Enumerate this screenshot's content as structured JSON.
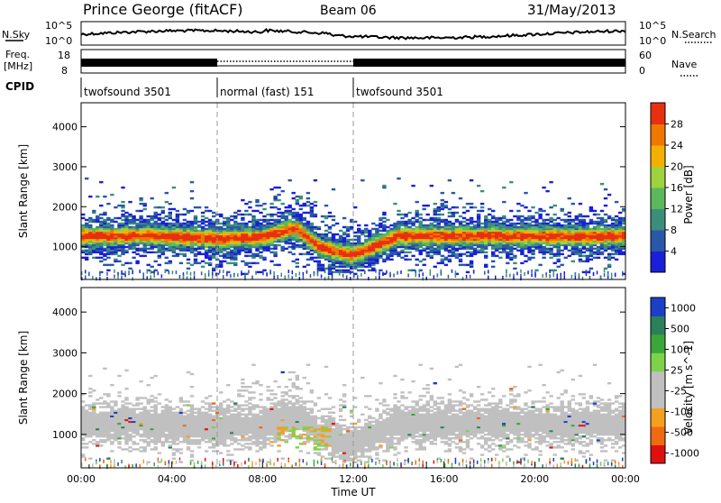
{
  "header": {
    "station": "Prince George (fitACF)",
    "beam": "Beam 06",
    "date": "31/May/2013"
  },
  "top_panels": {
    "nsky": {
      "label": "N.Sky",
      "tick_top": "10^5",
      "tick_bottom": "10^0",
      "right_tick_top": "10^5",
      "right_tick_bottom": "10^0",
      "right_label": "N.Search"
    },
    "freq": {
      "label_line1": "Freq.",
      "label_line2": "[MHz]",
      "tick_top": "18",
      "tick_bottom": "8",
      "right_tick_top": "60",
      "right_tick_bottom": "0",
      "right_label": "Nave"
    },
    "cpid": {
      "label": "CPID",
      "segments": [
        {
          "name": "twofsound 3501",
          "start_h": 0,
          "end_h": 6
        },
        {
          "name": "normal (fast) 151",
          "start_h": 6,
          "end_h": 12
        },
        {
          "name": "twofsound 3501",
          "start_h": 12,
          "end_h": 24
        }
      ]
    }
  },
  "chart_data": [
    {
      "type": "heatmap",
      "title": "",
      "ylabel": "Slant Range [km]",
      "xlabel": "",
      "yticks": [
        1000,
        2000,
        3000,
        4000
      ],
      "ylim": [
        180,
        4600
      ],
      "xlim_hours": [
        0,
        24
      ],
      "dashed_x_hours": [
        6,
        12
      ],
      "colorbar": {
        "label": "Power [dB]",
        "ticks": [
          "4",
          "8",
          "12",
          "16",
          "20",
          "24",
          "28"
        ],
        "range": [
          0,
          30
        ],
        "colors": [
          "#1a1fd8",
          "#2a57a8",
          "#3b8f7a",
          "#5cb85c",
          "#9fd23f",
          "#f4b000",
          "#f07800",
          "#e83010"
        ]
      },
      "band_centers_km": [
        {
          "h": 0,
          "km": 1250
        },
        {
          "h": 3,
          "km": 1260
        },
        {
          "h": 6,
          "km": 1180
        },
        {
          "h": 8,
          "km": 1220
        },
        {
          "h": 9.5,
          "km": 1450
        },
        {
          "h": 10.5,
          "km": 980
        },
        {
          "h": 12,
          "km": 760
        },
        {
          "h": 14,
          "km": 1250
        },
        {
          "h": 18,
          "km": 1250
        },
        {
          "h": 22,
          "km": 1230
        },
        {
          "h": 24,
          "km": 1250
        }
      ]
    },
    {
      "type": "heatmap",
      "title": "",
      "ylabel": "Slant Range [km]",
      "xlabel": "Time UT",
      "yticks": [
        1000,
        2000,
        3000,
        4000
      ],
      "ylim": [
        180,
        4600
      ],
      "xlim_hours": [
        0,
        24
      ],
      "xticks": [
        "00:00",
        "04:00",
        "08:00",
        "12:00",
        "16:00",
        "20:00",
        "00:00"
      ],
      "dashed_x_hours": [
        6,
        12
      ],
      "colorbar": {
        "label": "Velocity [m s^-1]",
        "ticks": [
          "1000",
          "500",
          "100",
          "25",
          "-25",
          "-100",
          "-500",
          "-1000"
        ],
        "colors": [
          "#1a40c8",
          "#2d7f5a",
          "#3aa63a",
          "#7ed24a",
          "#c0c0c0",
          "#c0c0c0",
          "#f3a020",
          "#f06a10",
          "#e01010"
        ]
      }
    }
  ]
}
